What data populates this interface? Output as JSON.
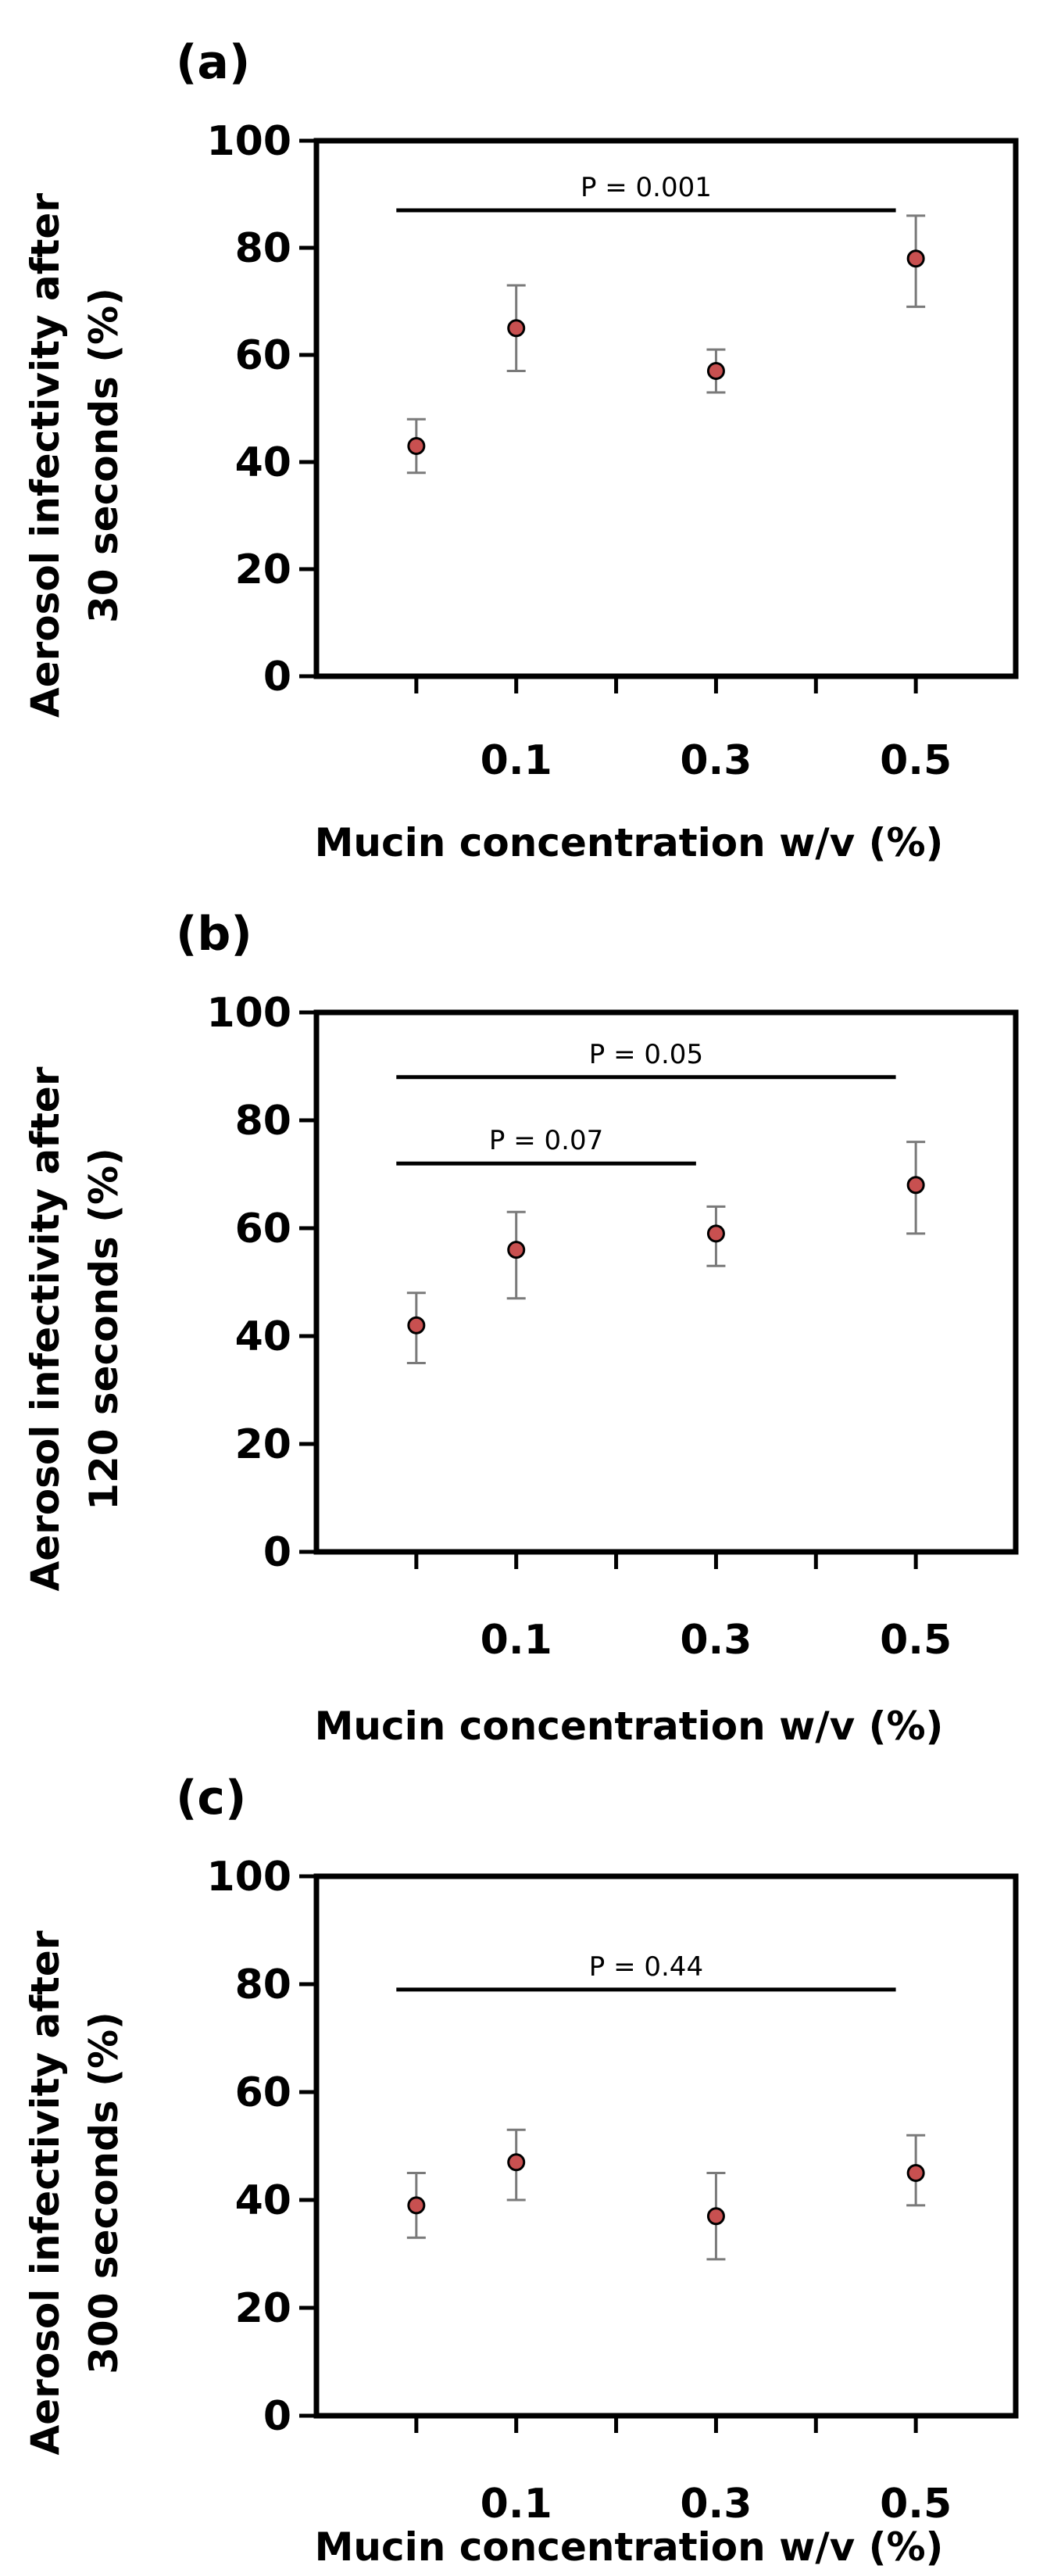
{
  "chart_data": [
    {
      "type": "scatter",
      "panel": "(a)",
      "title": "",
      "xlabel": "Mucin concentration w/v (%)",
      "ylabel_line1": "Aerosol infectivity after",
      "ylabel_line2": "30 seconds (%)",
      "ylim": [
        0,
        100
      ],
      "yticks": [
        0,
        20,
        40,
        60,
        80,
        100
      ],
      "xlim": [
        -0.1,
        0.6
      ],
      "xtick_labels": [
        {
          "x": 0.1,
          "label": "0.1"
        },
        {
          "x": 0.3,
          "label": "0.3"
        },
        {
          "x": 0.5,
          "label": "0.5"
        }
      ],
      "x": [
        0.0,
        0.1,
        0.3,
        0.5
      ],
      "y": [
        43,
        65,
        57,
        78
      ],
      "err_low": [
        5,
        8,
        4,
        9
      ],
      "err_high": [
        5,
        8,
        4,
        8
      ],
      "marker_color": "#c85050",
      "significance": [
        {
          "x_start": -0.02,
          "x_end": 0.48,
          "y": 87,
          "label": "P = 0.001"
        }
      ]
    },
    {
      "type": "scatter",
      "panel": "(b)",
      "title": "",
      "xlabel": "Mucin concentration w/v (%)",
      "ylabel_line1": "Aerosol infectivity after",
      "ylabel_line2": "120 seconds (%)",
      "ylim": [
        0,
        100
      ],
      "yticks": [
        0,
        20,
        40,
        60,
        80,
        100
      ],
      "xlim": [
        -0.1,
        0.6
      ],
      "xtick_labels": [
        {
          "x": 0.1,
          "label": "0.1"
        },
        {
          "x": 0.3,
          "label": "0.3"
        },
        {
          "x": 0.5,
          "label": "0.5"
        }
      ],
      "x": [
        0.0,
        0.1,
        0.3,
        0.5
      ],
      "y": [
        42,
        56,
        59,
        68
      ],
      "err_low": [
        7,
        9,
        6,
        9
      ],
      "err_high": [
        6,
        7,
        5,
        8
      ],
      "marker_color": "#c85050",
      "significance": [
        {
          "x_start": -0.02,
          "x_end": 0.48,
          "y": 88,
          "label": "P = 0.05"
        },
        {
          "x_start": -0.02,
          "x_end": 0.28,
          "y": 72,
          "label": "P = 0.07"
        }
      ]
    },
    {
      "type": "scatter",
      "panel": "(c)",
      "title": "",
      "xlabel": "Mucin concentration w/v (%)",
      "ylabel_line1": "Aerosol infectivity after",
      "ylabel_line2": "300 seconds (%)",
      "ylim": [
        0,
        100
      ],
      "yticks": [
        0,
        20,
        40,
        60,
        80,
        100
      ],
      "xlim": [
        -0.1,
        0.6
      ],
      "xtick_labels": [
        {
          "x": 0.1,
          "label": "0.1"
        },
        {
          "x": 0.3,
          "label": "0.3"
        },
        {
          "x": 0.5,
          "label": "0.5"
        }
      ],
      "x": [
        0.0,
        0.1,
        0.3,
        0.5
      ],
      "y": [
        39,
        47,
        37,
        45
      ],
      "err_low": [
        6,
        7,
        8,
        6
      ],
      "err_high": [
        6,
        6,
        8,
        7
      ],
      "marker_color": "#c85050",
      "significance": [
        {
          "x_start": -0.02,
          "x_end": 0.48,
          "y": 79,
          "label": "P = 0.44"
        }
      ]
    }
  ]
}
